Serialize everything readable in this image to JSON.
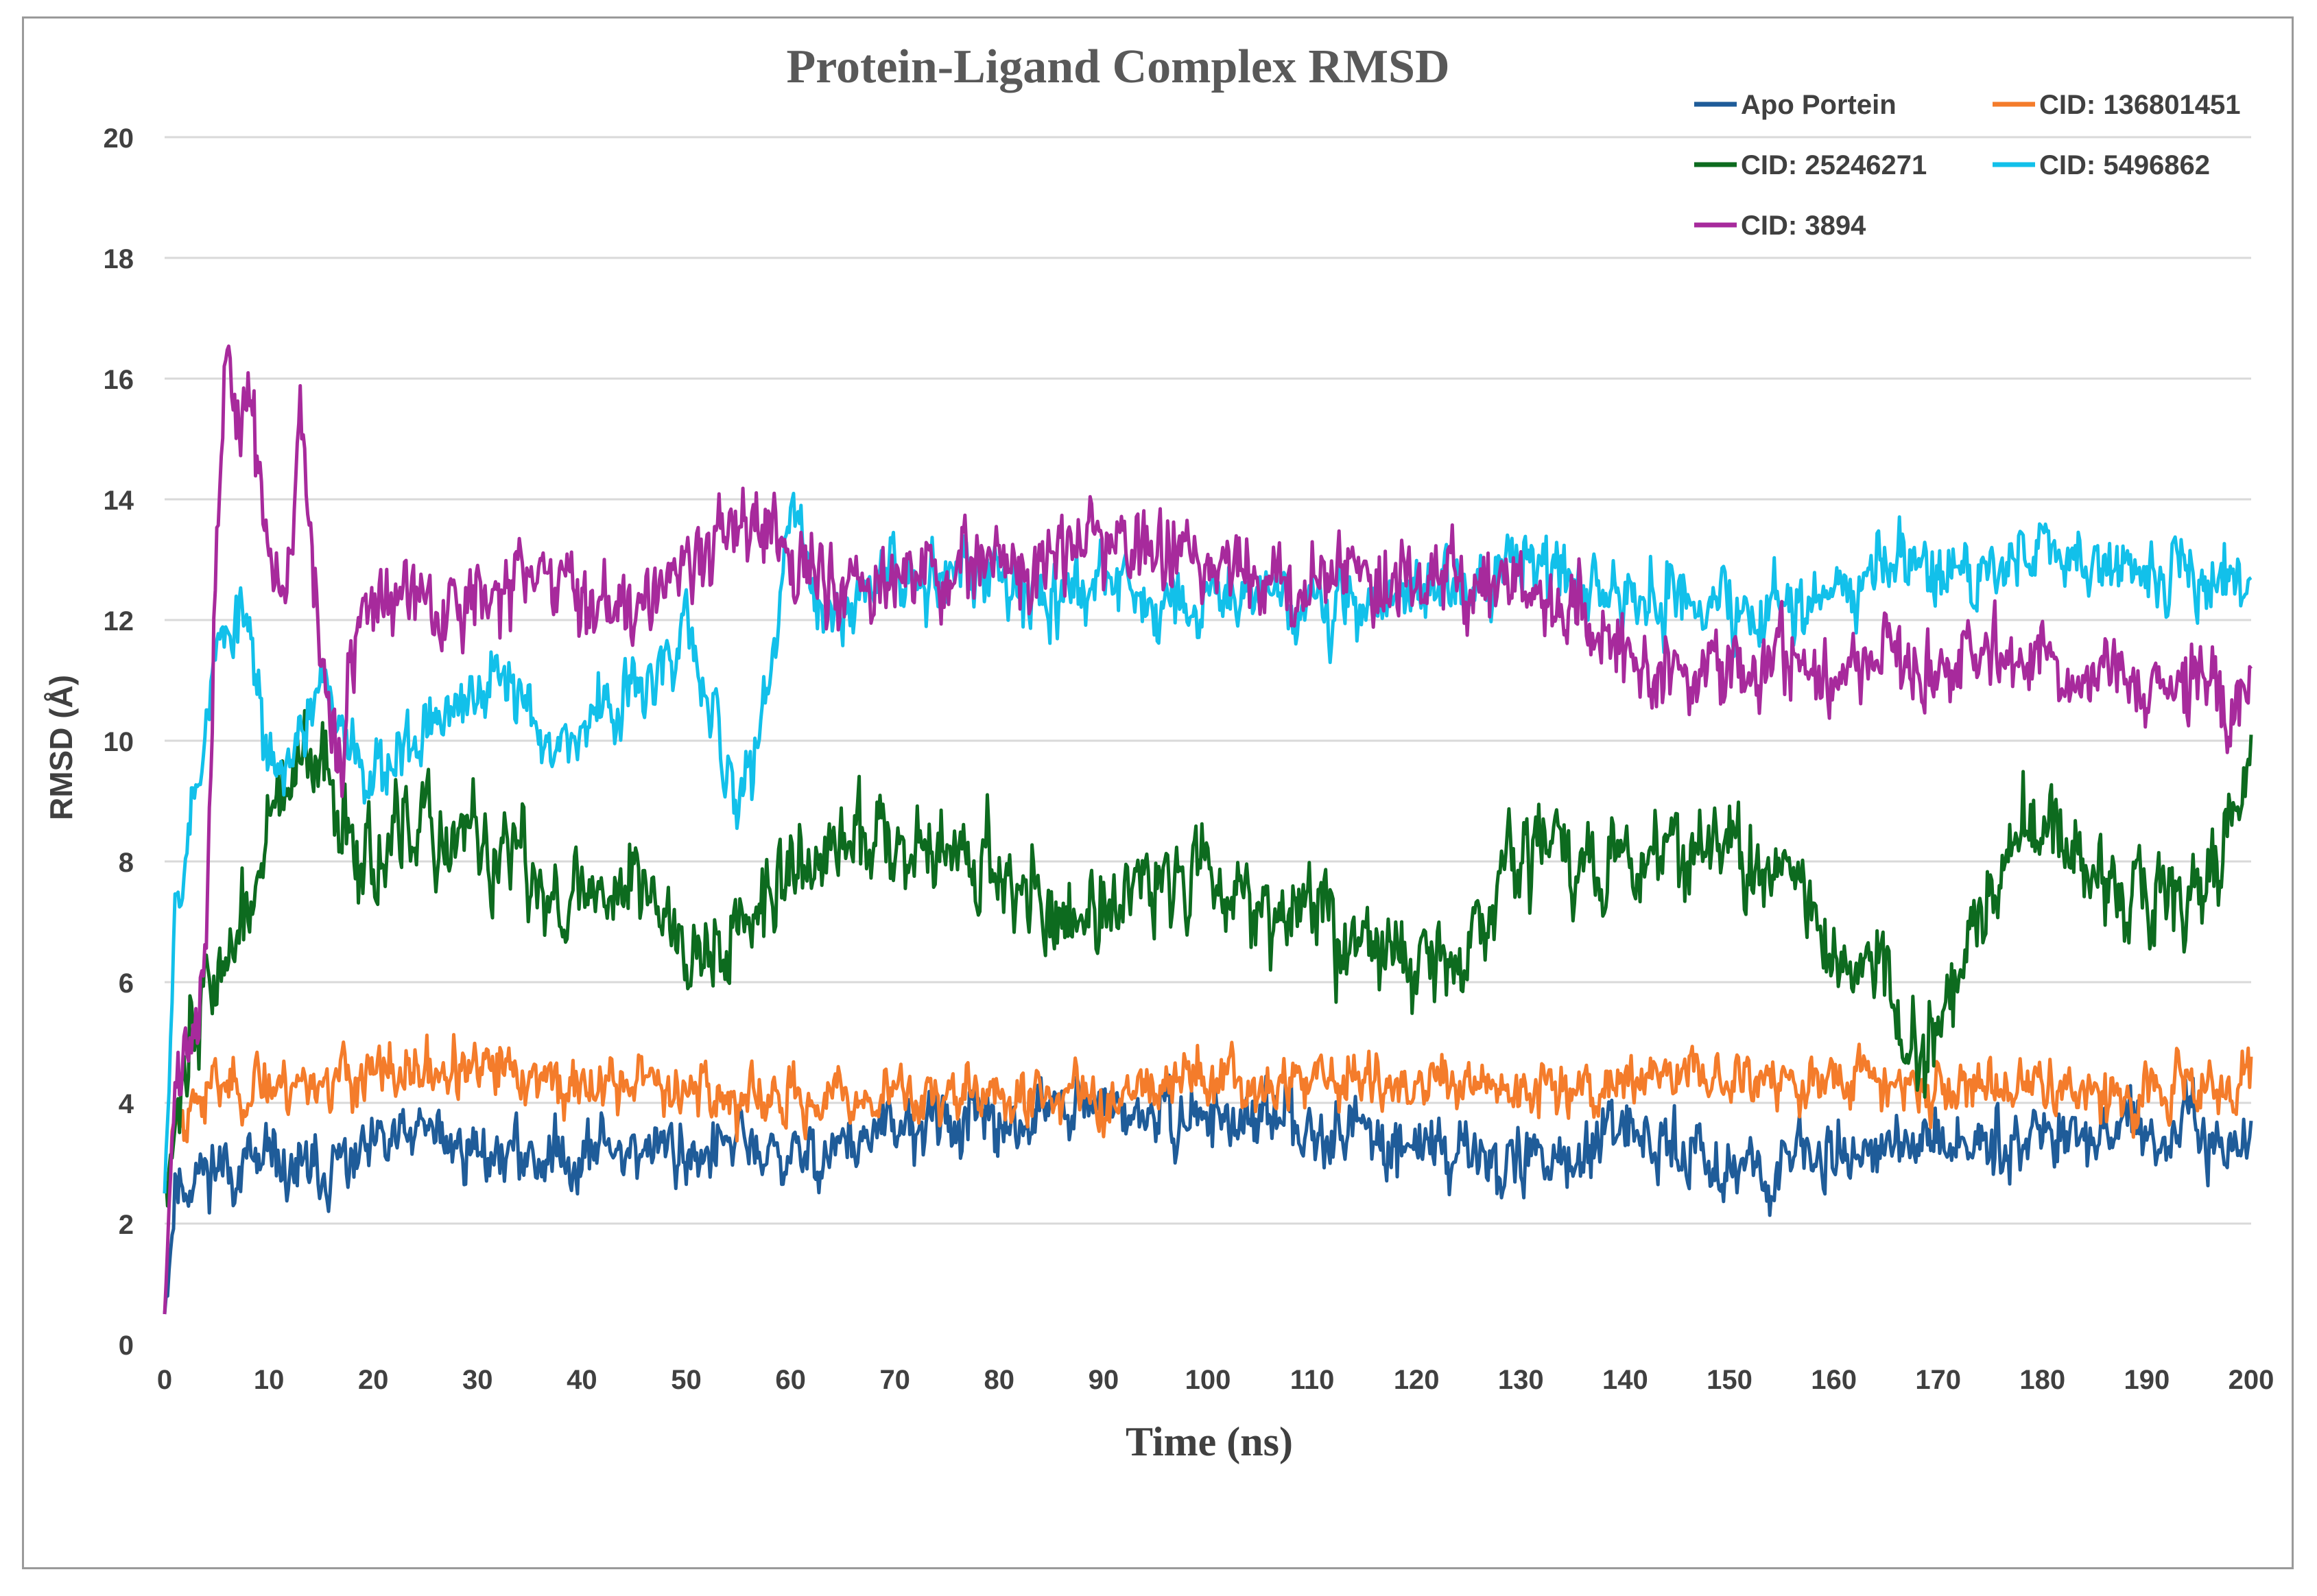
{
  "chart_data": {
    "type": "line",
    "title": "Protein-Ligand Complex RMSD",
    "xlabel": "Time (ns)",
    "ylabel": "RMSD (Å)",
    "xlim": [
      0,
      200
    ],
    "ylim": [
      0,
      20
    ],
    "xticks": [
      0,
      10,
      20,
      30,
      40,
      50,
      60,
      70,
      80,
      90,
      100,
      110,
      120,
      130,
      140,
      150,
      160,
      170,
      180,
      190,
      200
    ],
    "yticks": [
      0,
      2,
      4,
      6,
      8,
      10,
      12,
      14,
      16,
      18,
      20
    ],
    "grid": "horizontal",
    "legend_position": "top-right",
    "series": [
      {
        "name": "Apo Portein",
        "color": "#1F5C99",
        "noise": 0.5,
        "seed": 11,
        "x": [
          0,
          1,
          5,
          10,
          15,
          20,
          25,
          30,
          35,
          40,
          45,
          50,
          55,
          60,
          65,
          70,
          75,
          80,
          85,
          90,
          95,
          100,
          105,
          110,
          115,
          120,
          125,
          130,
          135,
          140,
          145,
          150,
          155,
          160,
          165,
          170,
          175,
          180,
          185,
          190,
          195,
          200
        ],
        "y": [
          0.5,
          2.6,
          3.0,
          2.9,
          2.8,
          3.2,
          3.5,
          3.2,
          3.1,
          3.2,
          3.3,
          3.2,
          3.3,
          3.0,
          3.3,
          3.5,
          3.7,
          3.6,
          3.9,
          3.9,
          3.7,
          3.8,
          3.6,
          3.7,
          3.5,
          3.3,
          3.2,
          3.0,
          3.1,
          3.4,
          3.3,
          3.0,
          2.9,
          3.3,
          3.2,
          3.3,
          3.4,
          3.6,
          3.5,
          3.4,
          3.4,
          3.3
        ]
      },
      {
        "name": "CID: 136801451",
        "color": "#F47C2B",
        "noise": 0.45,
        "seed": 23,
        "x": [
          0,
          1,
          5,
          10,
          15,
          20,
          25,
          30,
          35,
          40,
          45,
          50,
          55,
          60,
          65,
          70,
          75,
          80,
          85,
          90,
          95,
          100,
          105,
          110,
          115,
          120,
          125,
          130,
          135,
          140,
          145,
          150,
          155,
          160,
          165,
          170,
          175,
          180,
          185,
          190,
          195,
          200
        ],
        "y": [
          2.5,
          3.8,
          4.3,
          4.3,
          4.4,
          4.4,
          4.5,
          4.5,
          4.5,
          4.2,
          4.4,
          4.3,
          4.0,
          4.0,
          4.0,
          4.1,
          4.2,
          4.1,
          4.1,
          4.1,
          4.4,
          4.5,
          4.3,
          4.4,
          4.4,
          4.2,
          4.2,
          4.3,
          4.3,
          4.4,
          4.5,
          4.4,
          4.3,
          4.4,
          4.4,
          4.3,
          4.3,
          4.2,
          4.2,
          4.3,
          4.3,
          4.3
        ]
      },
      {
        "name": "CID: 25246271",
        "color": "#0D6B1F",
        "noise": 0.75,
        "seed": 37,
        "x": [
          0,
          2,
          5,
          8,
          10,
          12,
          15,
          18,
          20,
          25,
          30,
          35,
          40,
          45,
          50,
          55,
          60,
          65,
          70,
          75,
          80,
          85,
          90,
          95,
          100,
          105,
          110,
          115,
          120,
          125,
          130,
          135,
          140,
          145,
          150,
          155,
          160,
          165,
          168,
          172,
          178,
          182,
          188,
          193,
          197,
          200
        ],
        "y": [
          2.5,
          5.0,
          6.2,
          7.0,
          8.6,
          9.4,
          9.4,
          8.6,
          8.1,
          8.4,
          8.3,
          7.7,
          7.4,
          7.8,
          6.8,
          6.7,
          7.8,
          8.2,
          8.6,
          8.1,
          7.9,
          7.0,
          7.3,
          7.6,
          8.0,
          7.3,
          7.2,
          6.7,
          6.3,
          6.4,
          8.4,
          8.0,
          8.0,
          8.4,
          8.1,
          7.6,
          6.5,
          6.0,
          4.8,
          6.0,
          8.6,
          8.5,
          7.2,
          7.6,
          8.0,
          9.6
        ]
      },
      {
        "name": "CID: 5496862",
        "color": "#12C0EA",
        "noise": 0.55,
        "seed": 53,
        "x": [
          0,
          1,
          3,
          5,
          8,
          10,
          13,
          15,
          20,
          25,
          28,
          33,
          38,
          40,
          45,
          48,
          50,
          53,
          55,
          58,
          60,
          63,
          65,
          70,
          75,
          80,
          85,
          90,
          95,
          100,
          105,
          110,
          115,
          120,
          125,
          130,
          135,
          140,
          145,
          150,
          155,
          160,
          165,
          170,
          175,
          180,
          185,
          190,
          195,
          200
        ],
        "y": [
          2.5,
          7.5,
          9.2,
          11.5,
          12.0,
          9.5,
          10.0,
          10.8,
          9.5,
          10.2,
          10.5,
          11.0,
          10.0,
          10.2,
          10.8,
          11.0,
          12.0,
          10.0,
          8.8,
          11.0,
          13.8,
          12.0,
          12.2,
          12.8,
          12.9,
          12.8,
          12.5,
          12.6,
          12.3,
          12.4,
          12.6,
          12.1,
          12.3,
          12.5,
          12.6,
          12.9,
          12.6,
          12.3,
          12.6,
          12.3,
          12.2,
          12.5,
          12.9,
          12.9,
          12.8,
          13.1,
          12.8,
          12.8,
          12.6,
          12.6
        ]
      },
      {
        "name": "CID: 3894",
        "color": "#A72A9C",
        "noise": 0.65,
        "seed": 71,
        "x": [
          0,
          1,
          3,
          4,
          5,
          6,
          7,
          8,
          9,
          10,
          11,
          12,
          13,
          14,
          15,
          16,
          17,
          18,
          20,
          25,
          30,
          35,
          40,
          45,
          50,
          55,
          60,
          65,
          70,
          75,
          80,
          85,
          90,
          95,
          100,
          105,
          110,
          115,
          120,
          125,
          130,
          135,
          140,
          145,
          150,
          155,
          160,
          165,
          170,
          175,
          180,
          185,
          190,
          195,
          198,
          200
        ],
        "y": [
          0.5,
          4.2,
          5.5,
          6.5,
          13.5,
          16.5,
          15.0,
          16.0,
          14.5,
          13.5,
          12.0,
          13.0,
          15.5,
          13.0,
          11.5,
          10.5,
          9.0,
          11.5,
          12.4,
          12.2,
          12.3,
          12.5,
          12.5,
          12.3,
          13.2,
          13.6,
          12.8,
          12.4,
          12.7,
          12.9,
          12.8,
          13.0,
          13.4,
          13.1,
          13.0,
          12.8,
          12.6,
          12.7,
          12.8,
          12.7,
          12.6,
          12.2,
          11.6,
          11.0,
          11.2,
          11.3,
          11.0,
          11.3,
          11.0,
          11.4,
          11.3,
          11.0,
          11.2,
          10.8,
          10.6,
          11.2
        ]
      }
    ]
  }
}
